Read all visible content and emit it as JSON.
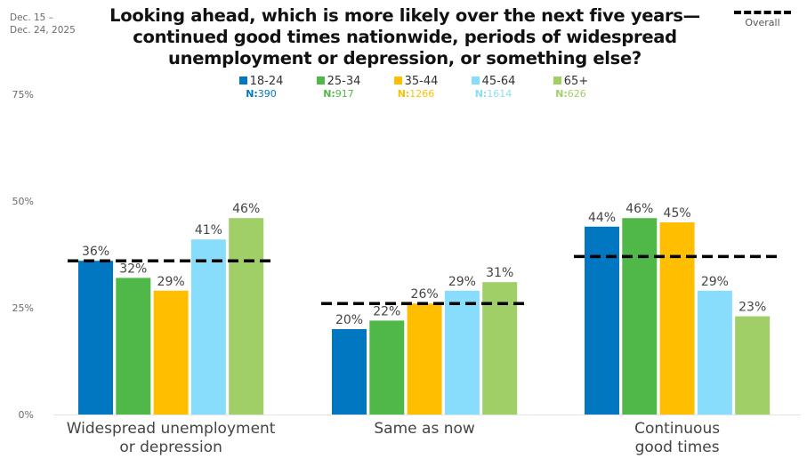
{
  "date_range": [
    "Dec. 15 –",
    "Dec. 24, 2025"
  ],
  "overall_legend_label": "Overall",
  "chart_data": {
    "type": "bar",
    "title": "Looking ahead, which is more likely over the next five years—continued good times nationwide, periods of widespread unemployment or depression, or something else?",
    "title_lines": [
      "Looking ahead, which is more likely over the next five years—",
      "continued good times nationwide, periods of widespread",
      "unemployment or depression, or something else?"
    ],
    "categories": [
      "Widespread unemployment or depression",
      "Same as now",
      "Continuous good times"
    ],
    "category_lines": [
      [
        "Widespread unemployment",
        "or depression"
      ],
      [
        "Same as now"
      ],
      [
        "Continuous",
        "good times"
      ]
    ],
    "series": [
      {
        "name": "18-24",
        "n": "390",
        "color": "#0077C0",
        "values": [
          36,
          20,
          44
        ]
      },
      {
        "name": "25-34",
        "n": "917",
        "color": "#50B848",
        "values": [
          32,
          22,
          46
        ]
      },
      {
        "name": "35-44",
        "n": "1266",
        "color": "#FFBF00",
        "values": [
          29,
          26,
          45
        ]
      },
      {
        "name": "45-64",
        "n": "1614",
        "color": "#87DDFB",
        "values": [
          41,
          29,
          29
        ]
      },
      {
        "name": "65+",
        "n": "626",
        "color": "#A0CE67",
        "values": [
          46,
          31,
          23
        ]
      }
    ],
    "overall": {
      "name": "Overall",
      "values": [
        36,
        26,
        37
      ]
    },
    "y_ticks": [
      0,
      25,
      50,
      75
    ],
    "y_tick_labels": [
      "0%",
      "25%",
      "50%",
      "75%"
    ],
    "ylim": [
      0,
      75
    ],
    "n_prefix": "N:",
    "value_suffix": "%",
    "xlabel": "",
    "ylabel": "",
    "grid": false,
    "legend_position": "top-center"
  }
}
